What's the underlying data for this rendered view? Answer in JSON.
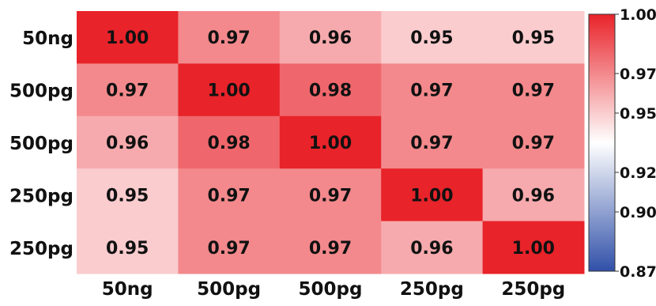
{
  "chart_data": {
    "type": "heatmap",
    "x_categories": [
      "50ng",
      "500pg",
      "500pg",
      "250pg",
      "250pg"
    ],
    "y_categories": [
      "50ng",
      "500pg",
      "500pg",
      "250pg",
      "250pg"
    ],
    "values": [
      [
        1.0,
        0.97,
        0.96,
        0.95,
        0.95
      ],
      [
        0.97,
        1.0,
        0.98,
        0.97,
        0.97
      ],
      [
        0.96,
        0.98,
        1.0,
        0.97,
        0.97
      ],
      [
        0.95,
        0.97,
        0.97,
        1.0,
        0.96
      ],
      [
        0.95,
        0.97,
        0.97,
        0.96,
        1.0
      ]
    ],
    "cell_labels": [
      [
        "1.00",
        "0.97",
        "0.96",
        "0.95",
        "0.95"
      ],
      [
        "0.97",
        "1.00",
        "0.98",
        "0.97",
        "0.97"
      ],
      [
        "0.96",
        "0.98",
        "1.00",
        "0.97",
        "0.97"
      ],
      [
        "0.95",
        "0.97",
        "0.97",
        "1.00",
        "0.96"
      ],
      [
        "0.95",
        "0.97",
        "0.97",
        "0.96",
        "1.00"
      ]
    ],
    "colorbar": {
      "min": 0.87,
      "max": 1.0,
      "mid": 0.935,
      "ticks": [
        "1.00",
        "0.97",
        "0.95",
        "0.92",
        "0.90",
        "0.87"
      ],
      "tick_values": [
        1.0,
        0.97,
        0.95,
        0.92,
        0.9,
        0.87
      ],
      "colors": {
        "low": "#3050a8",
        "mid": "#ffffff",
        "high": "#e8232a"
      }
    },
    "title": "",
    "xlabel": "",
    "ylabel": "",
    "grid": false
  }
}
